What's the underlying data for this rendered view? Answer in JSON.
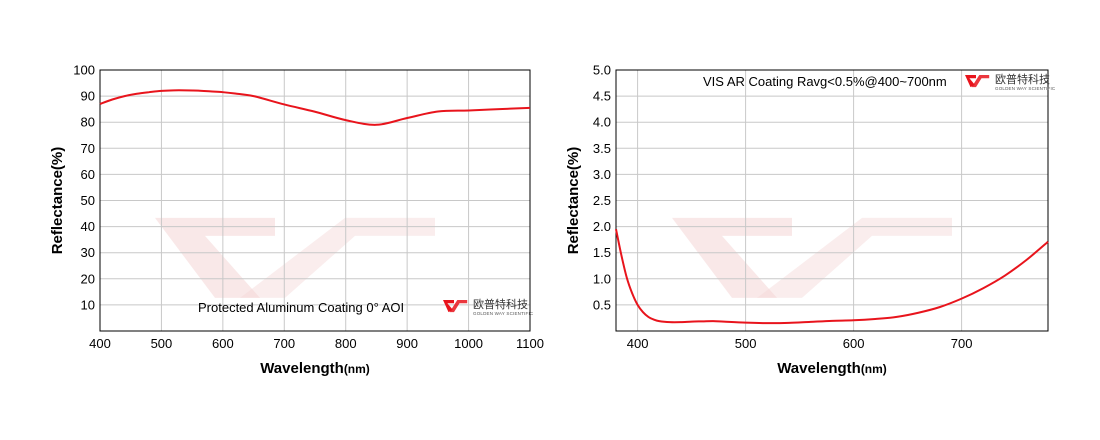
{
  "charts": [
    {
      "annotation": "Protected Aluminum Coating  0°  AOI",
      "xlabel_main": "Wavelength",
      "xlabel_unit": "(nm)",
      "ylabel": "Reflectance(%)",
      "logo_cn": "欧普特科技",
      "logo_en": "GOLDEN WAY SCIENTIFIC"
    },
    {
      "annotation": "VIS AR Coating Ravg<0.5%@400~700nm",
      "xlabel_main": "Wavelength",
      "xlabel_unit": "(nm)",
      "ylabel": "Reflectance(%)",
      "logo_cn": "欧普特科技",
      "logo_en": "GOLDEN WAY SCIENTIFIC"
    }
  ],
  "chart_data": [
    {
      "type": "line",
      "title": "",
      "xlabel": "Wavelength(nm)",
      "ylabel": "Reflectance(%)",
      "xlim": [
        400,
        1100
      ],
      "ylim": [
        0,
        100
      ],
      "xticks": [
        "400",
        "500",
        "600",
        "700",
        "800",
        "900",
        "1000",
        "1100"
      ],
      "yticks": [
        "10",
        "20",
        "30",
        "40",
        "50",
        "60",
        "70",
        "80",
        "90",
        "100"
      ],
      "grid": true,
      "line_color": "#e8141c",
      "series": [
        {
          "x": [
            400,
            420,
            440,
            460,
            480,
            500,
            520,
            540,
            560,
            580,
            600,
            620,
            650,
            700,
            750,
            800,
            850,
            900,
            950,
            1000,
            1050,
            1100
          ],
          "y": [
            87,
            88.7,
            90,
            90.9,
            91.5,
            92,
            92.2,
            92.2,
            92.1,
            91.8,
            91.5,
            91,
            90,
            86.8,
            84,
            80.8,
            79,
            81.6,
            84.1,
            84.5,
            85,
            85.5
          ]
        }
      ]
    },
    {
      "type": "line",
      "title": "",
      "xlabel": "Wavelength(nm)",
      "ylabel": "Reflectance(%)",
      "xlim": [
        380,
        780
      ],
      "ylim": [
        0,
        5.0
      ],
      "xticks": [
        "400",
        "500",
        "600",
        "700"
      ],
      "yticks": [
        "0.5",
        "1.0",
        "1.5",
        "2.0",
        "2.5",
        "3.0",
        "3.5",
        "4.0",
        "4.5",
        "5.0"
      ],
      "grid": true,
      "line_color": "#e8141c",
      "series": [
        {
          "x": [
            380,
            385,
            390,
            395,
            400,
            405,
            410,
            415,
            420,
            430,
            440,
            450,
            460,
            470,
            480,
            500,
            520,
            540,
            560,
            580,
            600,
            620,
            640,
            660,
            680,
            700,
            720,
            740,
            760,
            780
          ],
          "y": [
            1.95,
            1.45,
            1.02,
            0.72,
            0.5,
            0.36,
            0.27,
            0.22,
            0.19,
            0.17,
            0.17,
            0.18,
            0.185,
            0.19,
            0.18,
            0.16,
            0.15,
            0.155,
            0.175,
            0.195,
            0.205,
            0.23,
            0.27,
            0.35,
            0.46,
            0.62,
            0.82,
            1.06,
            1.36,
            1.71
          ]
        }
      ]
    }
  ]
}
